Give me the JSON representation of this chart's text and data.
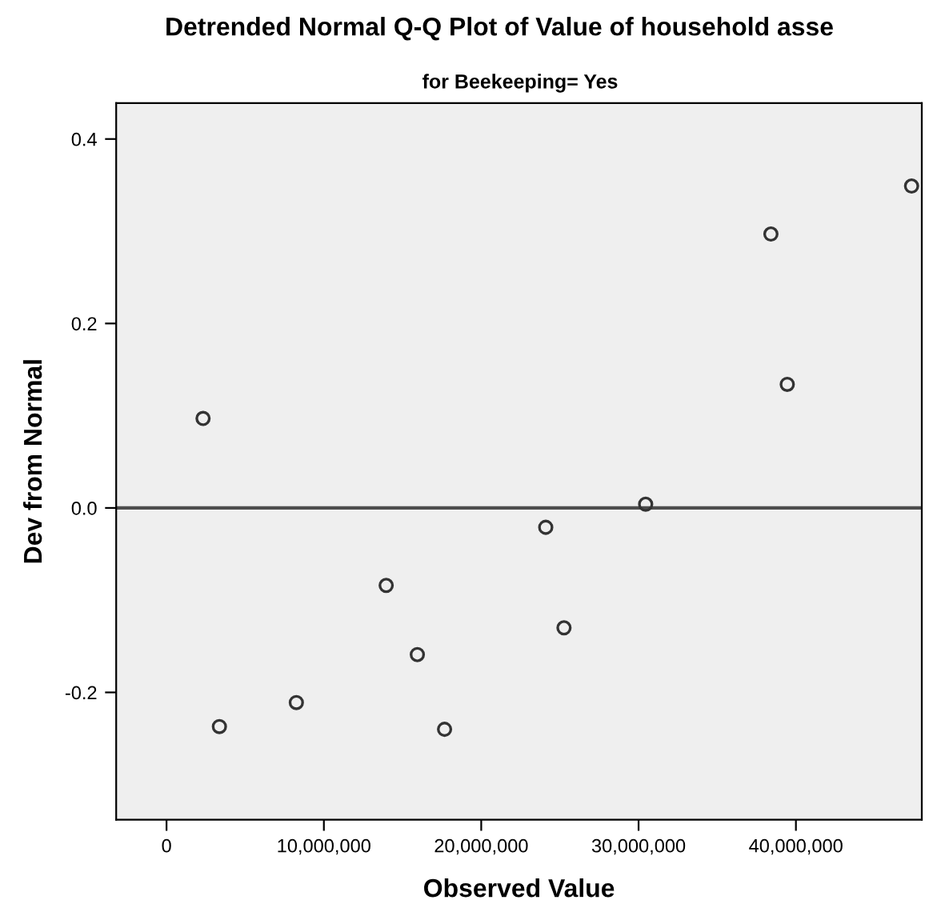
{
  "chart_data": {
    "type": "scatter",
    "title": "Detrended Normal Q-Q Plot of Value of household asse",
    "subtitle": "for Beekeeping= Yes",
    "xlabel": "Observed Value",
    "ylabel": "Dev from Normal",
    "x": [
      2320000,
      3360000,
      8250000,
      13960000,
      15940000,
      17670000,
      24100000,
      25260000,
      30450000,
      39450000,
      38410000,
      47350000
    ],
    "values": [
      0.097,
      -0.237,
      -0.211,
      -0.084,
      -0.159,
      -0.24,
      -0.021,
      -0.13,
      0.004,
      0.134,
      0.297,
      0.349
    ],
    "color": "#333333",
    "marker": "circle",
    "xlim": [
      -3200000,
      48000000
    ],
    "xticks": [
      0,
      {
        "value": 10000000,
        "label": "10,000,000"
      },
      {
        "value": 20000000,
        "label": "20,000,000"
      },
      {
        "value": 30000000,
        "label": "30,000,000"
      },
      {
        "value": 40000000,
        "label": "40,000,000"
      }
    ],
    "ylim": [
      -0.338,
      0.439
    ],
    "yticks": [
      {
        "value": -0.2,
        "label": "-0.2"
      },
      {
        "value": 0,
        "label": "0.0"
      },
      {
        "value": 0.2,
        "label": "0.2"
      },
      {
        "value": 0.4,
        "label": "0.4"
      }
    ],
    "ref_lines": [
      {
        "axis": "y",
        "value": 0,
        "color": "#4d4d4d"
      }
    ],
    "grid": false,
    "legend": false
  }
}
